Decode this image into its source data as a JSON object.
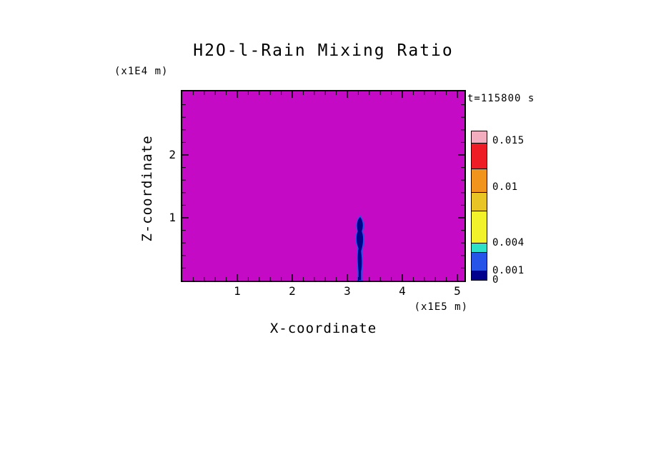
{
  "chart_data": {
    "type": "heatmap",
    "title": "H2O-l-Rain Mixing Ratio",
    "time_annotation": "t=115800 s",
    "xlabel": "X-coordinate",
    "ylabel": "Z-coordinate",
    "x_units_label": "(x1E5 m)",
    "y_units_label": "(x1E4 m)",
    "xlim": [
      0,
      5.13
    ],
    "ylim": [
      0,
      3.01
    ],
    "x_ticks": [
      1,
      2,
      3,
      4,
      5
    ],
    "y_ticks": [
      1,
      2
    ],
    "x_minor_tick_step": 0.2,
    "y_minor_tick_step": 0.2,
    "grid": false,
    "background_field": {
      "value": 0,
      "color": "#C50AC5",
      "description": "rain mixing ratio is zero (magenta fill) over nearly the whole domain"
    },
    "feature": {
      "name": "rain-plume",
      "description": "narrow vertical plume of nonzero rain mixing ratio",
      "x_range_1e5_m": [
        3.15,
        3.35
      ],
      "z_range_1e4_m": [
        0,
        0.97
      ],
      "peak_value": 0.003,
      "fill_color": "#00008C",
      "edge_color": "#2653E8"
    },
    "colorbar": {
      "max": 0.016,
      "levels": [
        0,
        0.001,
        0.003,
        0.004,
        0.0075,
        0.0095,
        0.012,
        0.0148,
        0.016
      ],
      "colors": [
        "#00008C",
        "#2653E8",
        "#2EE0C8",
        "#F2F22A",
        "#E8C424",
        "#F0941E",
        "#EE1C24",
        "#F2AEBE"
      ],
      "tick_labels": [
        {
          "value": 0.015,
          "label": "0.015"
        },
        {
          "value": 0.01,
          "label": "0.01"
        },
        {
          "value": 0.004,
          "label": "0.004"
        },
        {
          "value": 0.001,
          "label": "0.001"
        },
        {
          "value": 0,
          "label": "0"
        }
      ]
    }
  }
}
